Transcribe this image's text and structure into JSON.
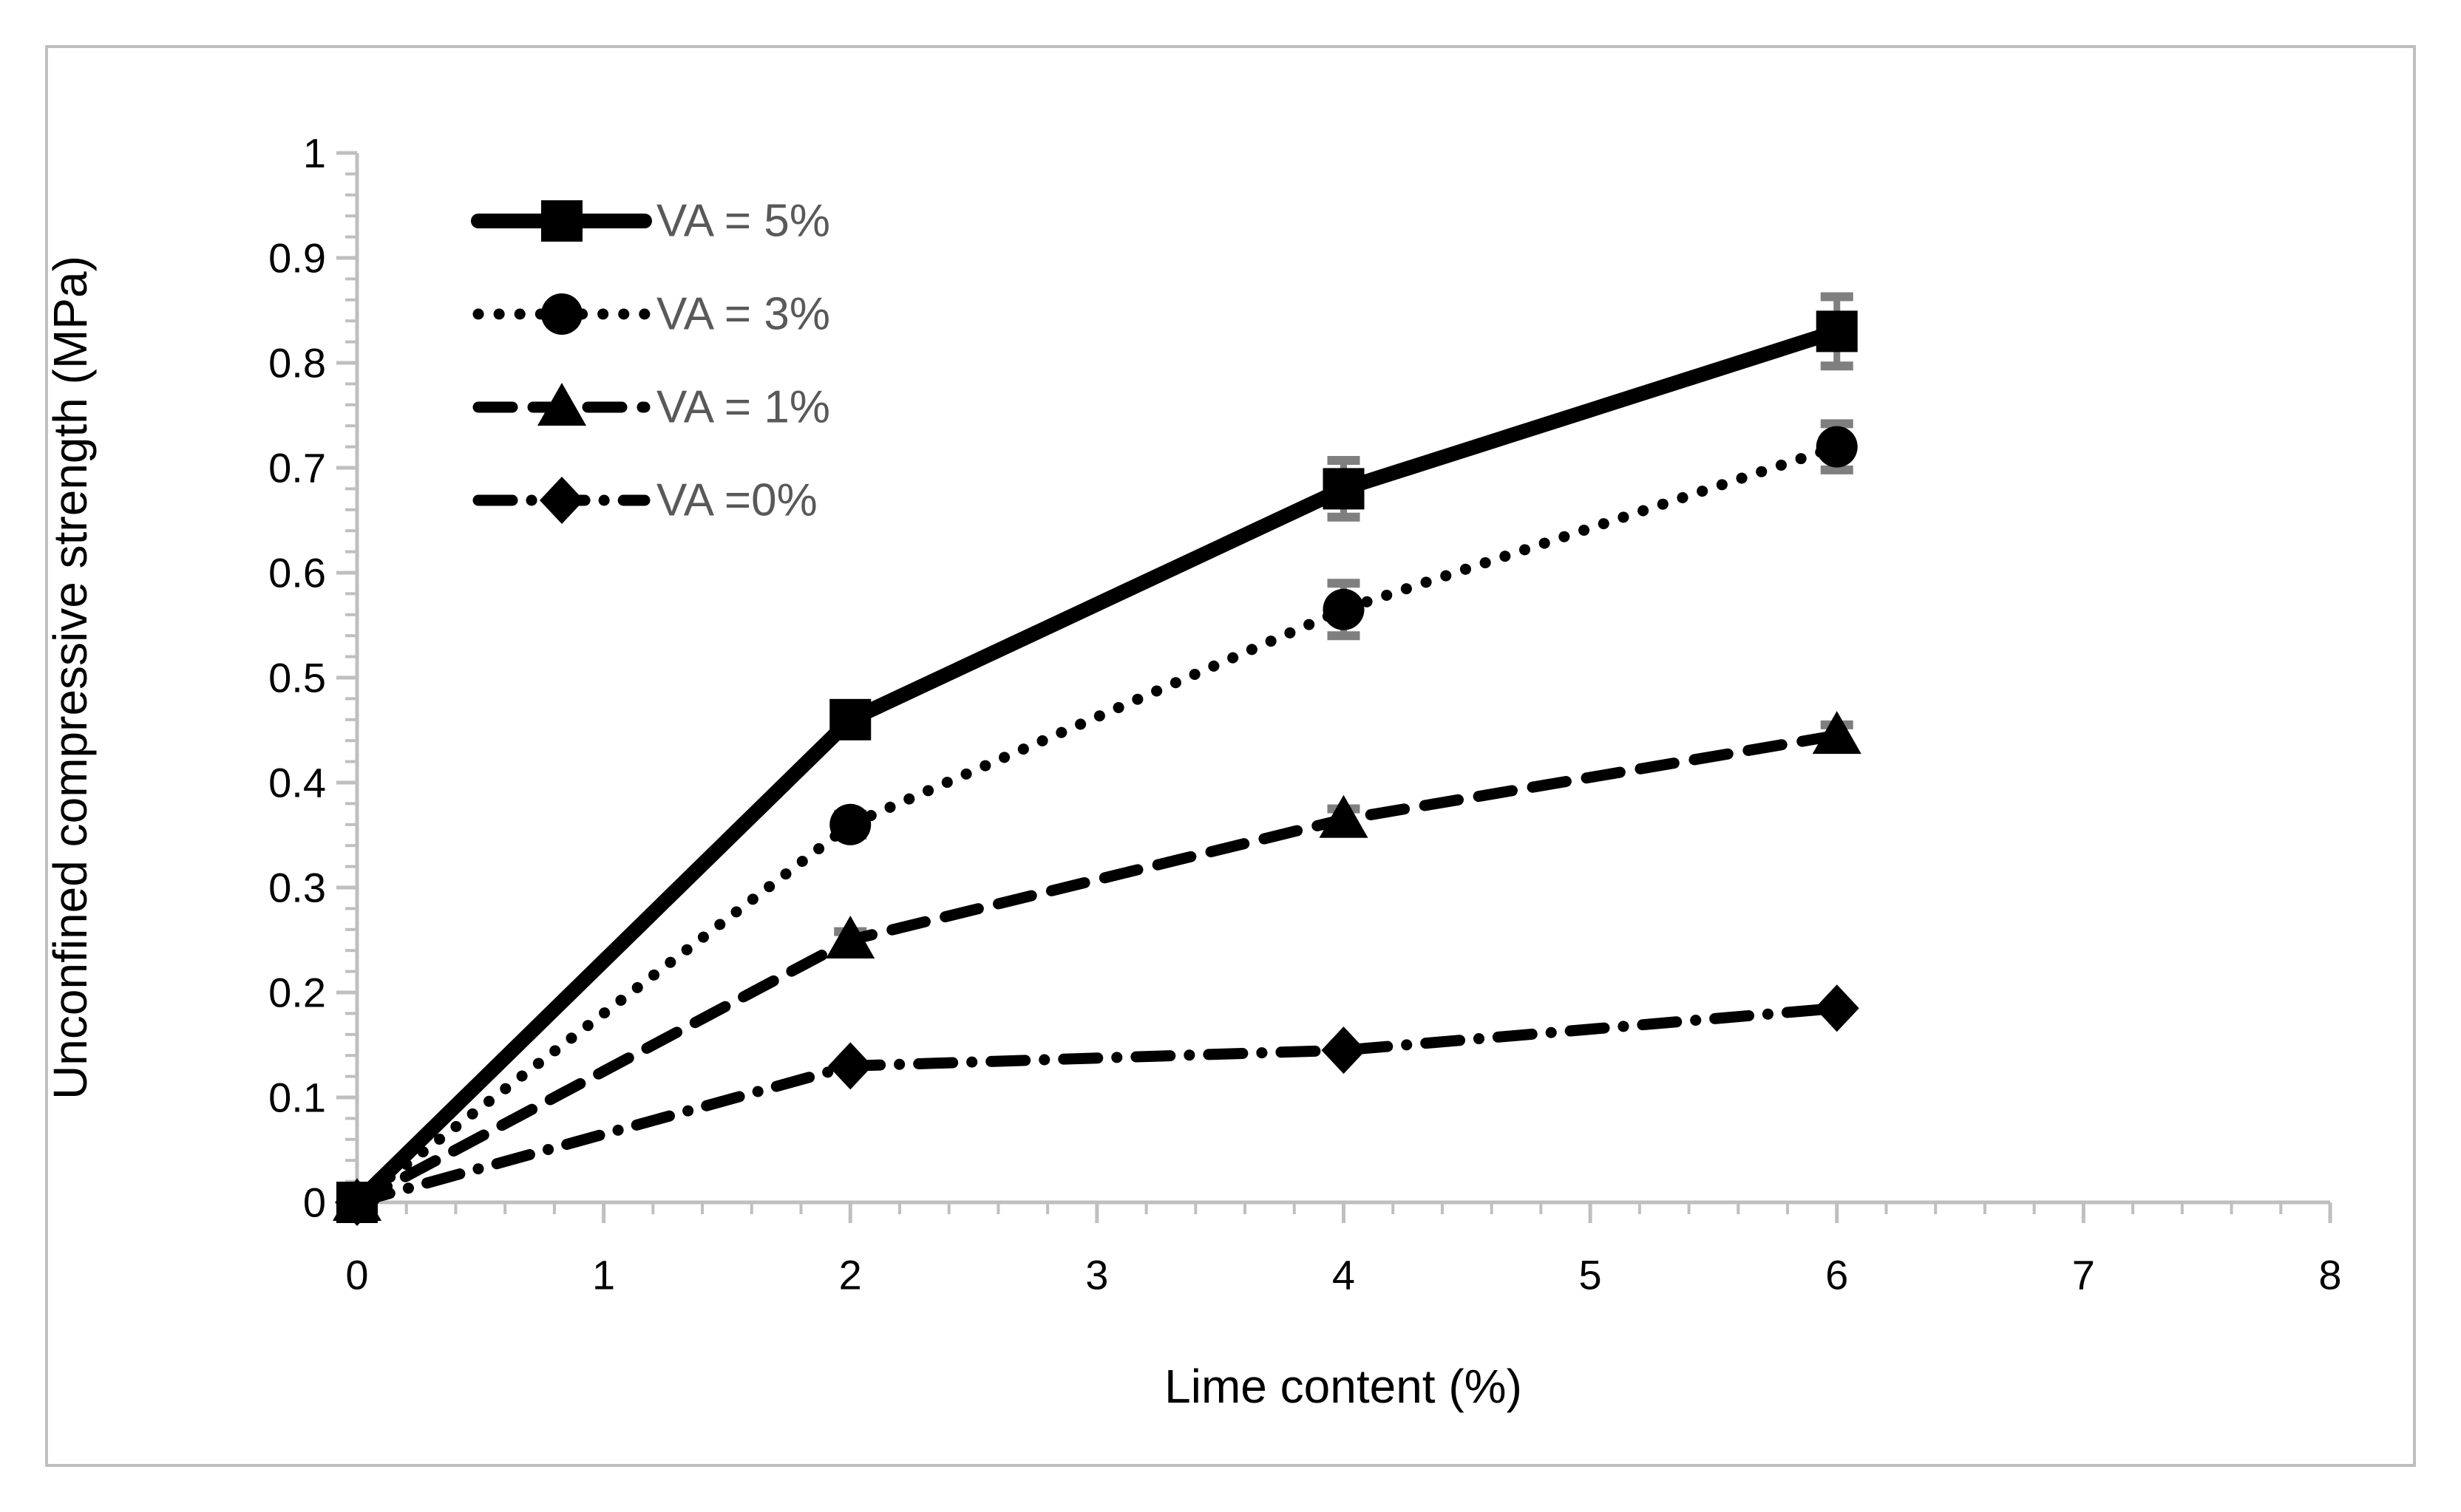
{
  "chart_data": {
    "type": "line",
    "title": "",
    "xlabel": "Lime content (%)",
    "ylabel": "Unconfined compressive strength (MPa)",
    "x": [
      0,
      2,
      4,
      6
    ],
    "xlim": [
      0,
      8
    ],
    "ylim": [
      0,
      1
    ],
    "x_tick_labels": [
      "0",
      "1",
      "2",
      "3",
      "4",
      "5",
      "6",
      "7",
      "8"
    ],
    "y_tick_labels": [
      "0",
      "0.1",
      "0.2",
      "0.3",
      "0.4",
      "0.5",
      "0.6",
      "0.7",
      "0.8",
      "0.9",
      "1"
    ],
    "x_minor_step": 0.2,
    "y_minor_step": 0.02,
    "grid": false,
    "legend_position": "inside-top-left",
    "series": [
      {
        "name": "VA = 5%",
        "marker": "square",
        "line_style": "solid",
        "values": [
          0,
          0.46,
          0.68,
          0.83
        ],
        "error_bars": [
          0,
          0.01,
          0.027,
          0.033
        ]
      },
      {
        "name": "VA = 3%",
        "marker": "circle",
        "line_style": "dotted",
        "values": [
          0,
          0.36,
          0.565,
          0.72
        ],
        "error_bars": [
          0,
          0.01,
          0.025,
          0.022
        ]
      },
      {
        "name": "VA = 1%",
        "marker": "triangle",
        "line_style": "dashed",
        "values": [
          0,
          0.25,
          0.365,
          0.445
        ],
        "error_bars": [
          0,
          0.008,
          0.01,
          0.01
        ]
      },
      {
        "name": "VA =0%",
        "marker": "diamond",
        "line_style": "dashdot",
        "values": [
          0,
          0.13,
          0.145,
          0.185
        ],
        "error_bars": [
          0,
          0,
          0,
          0
        ]
      }
    ],
    "colors": {
      "series": "#000000",
      "axis": "#bfbfbf",
      "error_bar": "#7f7f7f",
      "tick_label": "#000000",
      "axis_title": "#000000",
      "legend_text": "#595959",
      "background": "#ffffff",
      "frame": "#bfbfbf"
    }
  }
}
